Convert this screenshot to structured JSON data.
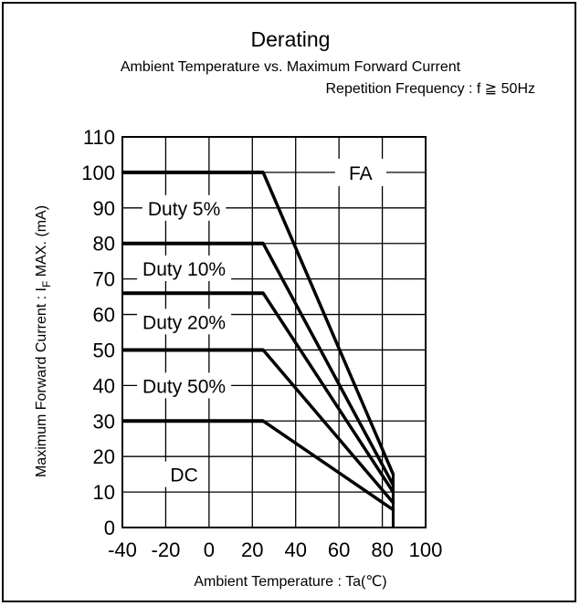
{
  "chart_data": {
    "type": "line",
    "title": "Derating",
    "subtitle": "Ambient Temperature vs. Maximum Forward Current",
    "condition": "Repetition Frequency : f ≧ 50Hz",
    "xlabel": "Ambient Temperature : Ta(℃)",
    "ylabel_prefix": "Maximum Forward Current : I",
    "ylabel_sub": "F",
    "ylabel_suffix": " MAX. (mA)",
    "xlim": [
      -40,
      100
    ],
    "ylim": [
      0,
      110
    ],
    "xticks": [
      -40,
      -20,
      0,
      20,
      40,
      60,
      80,
      100
    ],
    "yticks": [
      0,
      10,
      20,
      30,
      40,
      50,
      60,
      70,
      80,
      90,
      100,
      110
    ],
    "grid": true,
    "series": [
      {
        "name": "Duty 5%",
        "x": [
          -40,
          25,
          85
        ],
        "y": [
          100,
          100,
          15
        ]
      },
      {
        "name": "Duty 10%",
        "x": [
          -40,
          25,
          85
        ],
        "y": [
          80,
          80,
          12
        ]
      },
      {
        "name": "Duty 20%",
        "x": [
          -40,
          25,
          85
        ],
        "y": [
          66,
          66,
          10
        ]
      },
      {
        "name": "Duty 50%",
        "x": [
          -40,
          25,
          85
        ],
        "y": [
          50,
          50,
          7
        ]
      },
      {
        "name": "DC",
        "x": [
          -40,
          25,
          85
        ],
        "y": [
          30,
          30,
          5
        ]
      }
    ],
    "annotations": [
      {
        "text": "FA",
        "x": 70,
        "y": 100
      }
    ]
  }
}
